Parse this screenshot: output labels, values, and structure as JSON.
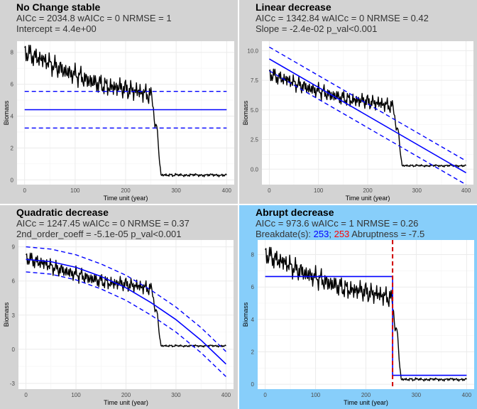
{
  "panels": [
    {
      "title": "No Change stable",
      "line2": "AICc = 2034.8  wAICc = 0 NRMSE = 1",
      "line3": "Intercept = 4.4e+00",
      "highlight": false,
      "ylabel": "Biomass",
      "xlabel": "Time unit (year)",
      "xticks": [
        0,
        100,
        200,
        300,
        400
      ],
      "yticks": [
        0,
        2,
        4,
        6,
        8
      ],
      "yticklabels": [
        "0",
        "2",
        "4",
        "6",
        "8"
      ],
      "ylim": [
        -0.3,
        8.7
      ],
      "xlim": [
        -15,
        415
      ]
    },
    {
      "title": "Linear decrease",
      "line2": "AICc = 1342.84  wAICc = 0 NRMSE = 0.42",
      "line3": "Slope  = -2.4e-02   p_val<0.001",
      "highlight": false,
      "ylabel": "Biomass",
      "xlabel": "Time unit (year)",
      "xticks": [
        0,
        100,
        200,
        300,
        400
      ],
      "yticks": [
        0,
        2.5,
        5,
        7.5,
        10
      ],
      "yticklabels": [
        "0.0",
        "2.5",
        "5.0",
        "7.5",
        "10.0"
      ],
      "ylim": [
        -1.3,
        10.8
      ],
      "xlim": [
        -15,
        415
      ]
    },
    {
      "title": "Quadratic decrease",
      "line2": "AICc = 1247.45  wAICc = 0 NRMSE = 0.37",
      "line3": "2nd_order_coeff  = -5.1e-05   p_val<0.001",
      "highlight": false,
      "ylabel": "Biomass",
      "xlabel": "Time unit (year)",
      "xticks": [
        0,
        100,
        200,
        300,
        400
      ],
      "yticks": [
        -3,
        0,
        3,
        6,
        9
      ],
      "yticklabels": [
        "-3",
        "0",
        "3",
        "6",
        "9"
      ],
      "ylim": [
        -3.5,
        9.6
      ],
      "xlim": [
        -15,
        415
      ]
    },
    {
      "title": "Abrupt decrease",
      "line2": "AICc = 973.6  wAICc = 1 NRMSE = 0.26",
      "line3_prefix": "Breakdate(s):  ",
      "breakdate_blue": "253",
      "separator": "; ",
      "breakdate_red": "253",
      "line3_suffix": " Abruptness  = -7.5",
      "highlight": true,
      "ylabel": "Biomass",
      "xlabel": "Time unit (year)",
      "xticks": [
        0,
        100,
        200,
        300,
        400
      ],
      "yticks": [
        0,
        2,
        4,
        6,
        8
      ],
      "yticklabels": [
        "0",
        "2",
        "4",
        "6",
        "8"
      ],
      "ylim": [
        -0.3,
        8.9
      ],
      "xlim": [
        -15,
        415
      ]
    }
  ],
  "chart_data": [
    {
      "type": "line",
      "title": "No Change stable",
      "xlabel": "Time unit (year)",
      "ylabel": "Biomass",
      "xlim": [
        0,
        400
      ],
      "series": [
        {
          "name": "",
          "kind": "observed",
          "x": [
            0,
            10,
            20,
            30,
            40,
            50,
            60,
            70,
            80,
            90,
            100,
            110,
            120,
            130,
            140,
            150,
            160,
            170,
            180,
            190,
            200,
            210,
            220,
            230,
            240,
            250,
            255,
            258,
            260,
            263,
            266,
            270,
            280,
            290,
            300,
            320,
            340,
            360,
            380,
            400
          ],
          "y": [
            8.0,
            7.9,
            7.7,
            7.6,
            7.5,
            7.3,
            7.1,
            7.0,
            6.8,
            6.7,
            6.6,
            6.5,
            6.3,
            6.2,
            6.1,
            6.0,
            5.9,
            5.8,
            5.8,
            5.8,
            5.7,
            5.6,
            5.6,
            5.5,
            5.4,
            5.3,
            4.5,
            3.2,
            3.5,
            3.1,
            1.5,
            0.3,
            0.3,
            0.3,
            0.3,
            0.3,
            0.3,
            0.3,
            0.3,
            0.3
          ]
        },
        {
          "name": "",
          "kind": "fit",
          "x": [
            0,
            400
          ],
          "y": [
            4.4,
            4.4
          ]
        },
        {
          "name": "",
          "kind": "ci_upper",
          "x": [
            0,
            400
          ],
          "y": [
            5.55,
            5.55
          ]
        },
        {
          "name": "",
          "kind": "ci_lower",
          "x": [
            0,
            400
          ],
          "y": [
            3.25,
            3.25
          ]
        }
      ]
    },
    {
      "type": "line",
      "title": "Linear decrease",
      "xlabel": "Time unit (year)",
      "ylabel": "Biomass",
      "xlim": [
        0,
        400
      ],
      "series": [
        {
          "name": "",
          "kind": "observed",
          "x": [
            0,
            10,
            20,
            30,
            40,
            50,
            60,
            70,
            80,
            90,
            100,
            110,
            120,
            130,
            140,
            150,
            160,
            170,
            180,
            190,
            200,
            210,
            220,
            230,
            240,
            250,
            255,
            258,
            260,
            263,
            266,
            270,
            280,
            290,
            300,
            320,
            340,
            360,
            380,
            400
          ],
          "y": [
            8.0,
            7.9,
            7.7,
            7.6,
            7.5,
            7.3,
            7.1,
            7.0,
            6.8,
            6.7,
            6.6,
            6.5,
            6.3,
            6.2,
            6.1,
            6.0,
            5.9,
            5.8,
            5.8,
            5.8,
            5.7,
            5.6,
            5.6,
            5.5,
            5.4,
            5.3,
            4.5,
            3.2,
            3.5,
            3.1,
            1.5,
            0.3,
            0.3,
            0.3,
            0.3,
            0.3,
            0.3,
            0.3,
            0.3,
            0.3
          ]
        },
        {
          "name": "",
          "kind": "fit",
          "x": [
            0,
            400
          ],
          "y": [
            9.3,
            -0.3
          ]
        },
        {
          "name": "",
          "kind": "ci_upper",
          "x": [
            0,
            400
          ],
          "y": [
            10.3,
            0.7
          ]
        },
        {
          "name": "",
          "kind": "ci_lower",
          "x": [
            0,
            400
          ],
          "y": [
            8.3,
            -1.3
          ]
        }
      ]
    },
    {
      "type": "line",
      "title": "Quadratic decrease",
      "xlabel": "Time unit (year)",
      "ylabel": "Biomass",
      "xlim": [
        0,
        400
      ],
      "series": [
        {
          "name": "",
          "kind": "observed",
          "x": [
            0,
            10,
            20,
            30,
            40,
            50,
            60,
            70,
            80,
            90,
            100,
            110,
            120,
            130,
            140,
            150,
            160,
            170,
            180,
            190,
            200,
            210,
            220,
            230,
            240,
            250,
            255,
            258,
            260,
            263,
            266,
            270,
            280,
            290,
            300,
            320,
            340,
            360,
            380,
            400
          ],
          "y": [
            8.0,
            7.9,
            7.7,
            7.6,
            7.5,
            7.3,
            7.1,
            7.0,
            6.8,
            6.7,
            6.6,
            6.5,
            6.3,
            6.2,
            6.1,
            6.0,
            5.9,
            5.8,
            5.8,
            5.8,
            5.7,
            5.6,
            5.6,
            5.5,
            5.4,
            5.3,
            4.5,
            3.2,
            3.5,
            3.1,
            1.5,
            0.3,
            0.3,
            0.3,
            0.3,
            0.3,
            0.3,
            0.3,
            0.3,
            0.3
          ]
        },
        {
          "name": "",
          "kind": "fit",
          "x": [
            0,
            50,
            100,
            150,
            200,
            250,
            300,
            350,
            400
          ],
          "y": [
            7.9,
            7.7,
            7.2,
            6.4,
            5.4,
            4.1,
            2.6,
            0.8,
            -1.3
          ]
        },
        {
          "name": "",
          "kind": "ci_upper",
          "x": [
            0,
            50,
            100,
            150,
            200,
            250,
            300,
            350,
            400
          ],
          "y": [
            9.0,
            8.8,
            8.3,
            7.5,
            6.5,
            5.2,
            3.7,
            1.9,
            -0.2
          ]
        },
        {
          "name": "",
          "kind": "ci_lower",
          "x": [
            0,
            50,
            100,
            150,
            200,
            250,
            300,
            350,
            400
          ],
          "y": [
            6.8,
            6.6,
            6.1,
            5.3,
            4.3,
            3.0,
            1.5,
            -0.3,
            -2.4
          ]
        }
      ]
    },
    {
      "type": "line",
      "title": "Abrupt decrease",
      "xlabel": "Time unit (year)",
      "ylabel": "Biomass",
      "xlim": [
        0,
        400
      ],
      "breakdate": 253,
      "series": [
        {
          "name": "",
          "kind": "observed",
          "x": [
            0,
            10,
            20,
            30,
            40,
            50,
            60,
            70,
            80,
            90,
            100,
            110,
            120,
            130,
            140,
            150,
            160,
            170,
            180,
            190,
            200,
            210,
            220,
            230,
            240,
            250,
            255,
            258,
            260,
            263,
            266,
            270,
            280,
            290,
            300,
            320,
            340,
            360,
            380,
            400
          ],
          "y": [
            8.0,
            7.9,
            7.7,
            7.6,
            7.5,
            7.3,
            7.1,
            7.0,
            6.8,
            6.7,
            6.6,
            6.5,
            6.3,
            6.2,
            6.1,
            6.0,
            5.9,
            5.8,
            5.8,
            5.8,
            5.7,
            5.6,
            5.6,
            5.5,
            5.4,
            5.3,
            4.5,
            3.2,
            3.5,
            3.1,
            1.5,
            0.3,
            0.3,
            0.3,
            0.3,
            0.3,
            0.3,
            0.3,
            0.3,
            0.3
          ]
        },
        {
          "name": "",
          "kind": "fit",
          "x": [
            0,
            253,
            253,
            400
          ],
          "y": [
            6.65,
            6.65,
            0.55,
            0.55
          ]
        }
      ]
    }
  ]
}
